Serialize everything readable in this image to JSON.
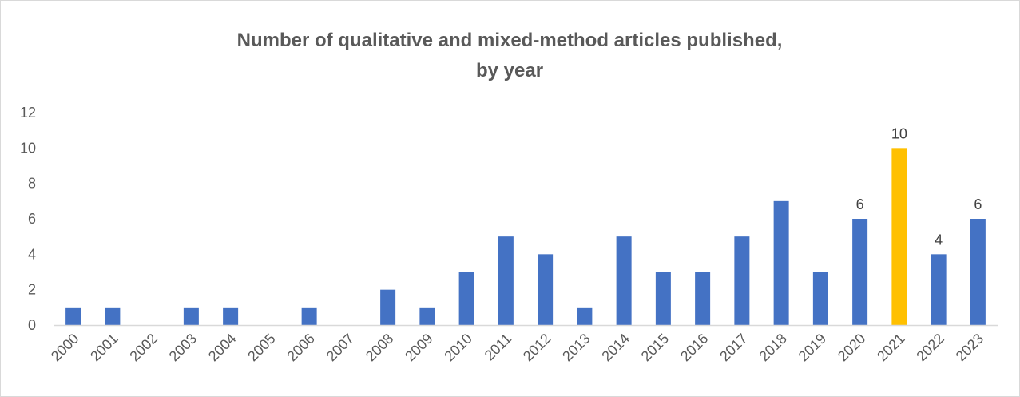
{
  "chart_data": {
    "type": "bar",
    "title_lines": [
      "Number of qualitative and mixed-method articles published,",
      "by year"
    ],
    "xlabel": "",
    "ylabel": "",
    "ylim": [
      0,
      12
    ],
    "y_ticks": [
      0,
      2,
      4,
      6,
      8,
      10,
      12
    ],
    "grid": false,
    "legend": "none",
    "categories": [
      "2000",
      "2001",
      "2002",
      "2003",
      "2004",
      "2005",
      "2006",
      "2007",
      "2008",
      "2009",
      "2010",
      "2011",
      "2012",
      "2013",
      "2014",
      "2015",
      "2016",
      "2017",
      "2018",
      "2019",
      "2020",
      "2021",
      "2022",
      "2023"
    ],
    "values": [
      1,
      1,
      0,
      1,
      1,
      0,
      1,
      0,
      2,
      1,
      3,
      5,
      4,
      1,
      5,
      3,
      3,
      5,
      7,
      3,
      6,
      10,
      4,
      6
    ],
    "data_labels": [
      {
        "category": "2020",
        "label": "6"
      },
      {
        "category": "2021",
        "label": "10"
      },
      {
        "category": "2022",
        "label": "4"
      },
      {
        "category": "2023",
        "label": "6"
      }
    ],
    "colors": {
      "bar": "#4472c4",
      "highlight": "#ffc000",
      "axis": "#d9d9d9"
    },
    "highlight_category": "2021"
  }
}
